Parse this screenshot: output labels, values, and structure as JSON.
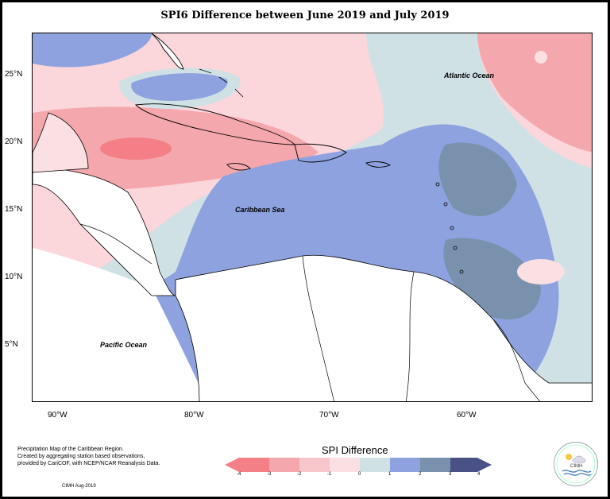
{
  "title": "SPI6 Difference between June 2019 and July 2019",
  "map": {
    "labels": {
      "atlantic": "Atlantic Ocean",
      "caribbean": "Caribbean Sea",
      "pacific": "Pacific Ocean"
    },
    "lat_ticks": [
      "25°N",
      "20°N",
      "15°N",
      "10°N",
      "5°N"
    ],
    "lon_ticks": [
      "90°W",
      "80°W",
      "70°W",
      "60°W"
    ]
  },
  "legend": {
    "title": "SPI Difference",
    "ticks": [
      "-4",
      "-3",
      "-2",
      "-1",
      "0",
      "1",
      "2",
      "3",
      "4"
    ],
    "colors": {
      "dry_strong": "#f47f86",
      "dry_mod": "#f4a7ad",
      "dry_light": "#f6c6ca",
      "dry_weak": "#fbe0e3",
      "near_zero": "#fff3f3",
      "wet_weak": "#cfe1e5",
      "wet_light": "#8ea2df",
      "wet_mod": "#7a91ad",
      "wet_strong": "#4a5187"
    }
  },
  "notes": {
    "line1": "Precipitation Map of the Caribbean Region.",
    "line2": "Created by aggregating station based observations,",
    "line3": "provided by CariCOF, with NCEP/NCAR Reanalysis Data.",
    "date": "CIMH Aug-2019"
  },
  "logo": {
    "text": "CIMH"
  }
}
